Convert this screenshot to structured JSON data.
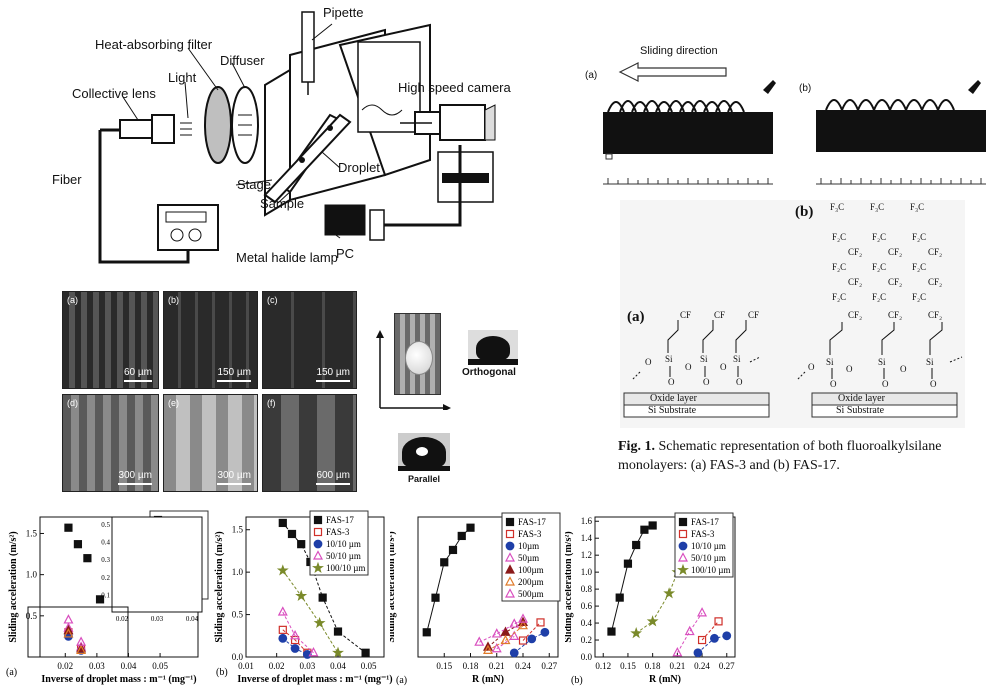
{
  "setup": {
    "labels": {
      "pipette": "Pipette",
      "heat_filter": "Heat-absorbing filter",
      "diffuser": "Diffuser",
      "light": "Light",
      "collective_lens": "Collective lens",
      "high_speed_camera": "High speed camera",
      "fiber": "Fiber",
      "stage": "Stage",
      "droplet": "Droplet",
      "sample": "Sample",
      "metal_halide_lamp": "Metal halide lamp",
      "pc": "PC"
    }
  },
  "sliding": {
    "direction": "Sliding direction",
    "panel_a": "(a)",
    "panel_b": "(b)"
  },
  "micrographs": [
    {
      "tag": "(a)",
      "scale": "60 µm"
    },
    {
      "tag": "(b)",
      "scale": "150 µm"
    },
    {
      "tag": "(c)",
      "scale": "150 µm"
    },
    {
      "tag": "(d)",
      "scale": "300 µm"
    },
    {
      "tag": "(e)",
      "scale": "300 µm"
    },
    {
      "tag": "(f)",
      "scale": "600 µm"
    }
  ],
  "orientation": {
    "orthogonal": "Orthogonal",
    "parallel": "Parallel"
  },
  "molecules": {
    "panel_a": "(a)",
    "panel_b": "(b)",
    "oxide_layer": "Oxide layer",
    "si_substrate": "Si Substrate",
    "caption_bold": "Fig. 1.",
    "caption_text": " Schematic representation of both fluoroalkylsilane monolayers: (a) FAS-3 and (b) FAS-17."
  },
  "chart_data": [
    {
      "type": "scatter",
      "panel": "(a)",
      "xlabel": "Inverse of droplet mass : m⁻¹ (mg⁻¹)",
      "ylabel": "Sliding acceleration (m/s²)",
      "xticks": [
        "0.02",
        "0.03",
        "0.04",
        "0.05"
      ],
      "yticks": [
        "0.5",
        "1.0",
        "1.5"
      ],
      "xlim": [
        0.012,
        0.062
      ],
      "ylim": [
        0,
        1.7
      ],
      "series": [
        {
          "name": "FAS-17",
          "x": [
            0.021,
            0.024,
            0.027,
            0.031
          ],
          "y": [
            1.57,
            1.37,
            1.2,
            0.7
          ]
        },
        {
          "name": "FAS-3",
          "x": [
            0.021,
            0.025
          ],
          "y": [
            0.3,
            0.1
          ]
        },
        {
          "name": "10 µm",
          "x": [
            0.021,
            0.025
          ],
          "y": [
            0.25,
            0.08
          ]
        },
        {
          "name": "50 µm",
          "x": [
            0.021,
            0.025
          ],
          "y": [
            0.35,
            0.12
          ]
        },
        {
          "name": "100 µm",
          "x": [
            0.021,
            0.025
          ],
          "y": [
            0.32,
            0.1
          ]
        },
        {
          "name": "200 µm",
          "x": [
            0.021,
            0.025
          ],
          "y": [
            0.28,
            0.08
          ]
        },
        {
          "name": "500 µm",
          "x": [
            0.021,
            0.025
          ],
          "y": [
            0.45,
            0.18
          ]
        }
      ],
      "inset": {
        "yticks": [
          "0.1",
          "0.2",
          "0.3",
          "0.4",
          "0.5"
        ],
        "xticks": [
          "0.02",
          "0.03",
          "0.04"
        ]
      }
    },
    {
      "type": "scatter",
      "panel": "(b)",
      "xlabel": "Inverse of droplet mass : m⁻¹ (mg⁻¹)",
      "ylabel": "Sliding acceleration (m/s²)",
      "xticks": [
        "0.01",
        "0.02",
        "0.03",
        "0.04",
        "0.05"
      ],
      "yticks": [
        "0.0",
        "0.5",
        "1.0",
        "1.5"
      ],
      "xlim": [
        0.01,
        0.055
      ],
      "ylim": [
        0,
        1.65
      ],
      "series": [
        {
          "name": "FAS-17",
          "x": [
            0.022,
            0.025,
            0.028,
            0.031,
            0.035,
            0.04,
            0.049
          ],
          "y": [
            1.58,
            1.45,
            1.33,
            1.12,
            0.7,
            0.3,
            0.05
          ]
        },
        {
          "name": "FAS-3",
          "x": [
            0.022,
            0.026,
            0.03
          ],
          "y": [
            0.32,
            0.2,
            0.05
          ]
        },
        {
          "name": "10/10 µm",
          "x": [
            0.022,
            0.026,
            0.03
          ],
          "y": [
            0.22,
            0.1,
            0.03
          ]
        },
        {
          "name": "50/10 µm",
          "x": [
            0.022,
            0.026,
            0.032
          ],
          "y": [
            0.53,
            0.25,
            0.05
          ]
        },
        {
          "name": "100/10 µm",
          "x": [
            0.022,
            0.028,
            0.034,
            0.04
          ],
          "y": [
            1.02,
            0.72,
            0.4,
            0.05
          ]
        }
      ]
    },
    {
      "type": "scatter",
      "panel": "(a)",
      "xlabel": "R (mN)",
      "ylabel": "Sliding acceleration (m/s²)",
      "xticks": [
        "0.15",
        "0.18",
        "0.21",
        "0.24",
        "0.27"
      ],
      "xlim": [
        0.12,
        0.28
      ],
      "ylim": [
        0,
        1.7
      ],
      "series": [
        {
          "name": "FAS-17",
          "x": [
            0.13,
            0.14,
            0.15,
            0.16,
            0.17,
            0.18
          ],
          "y": [
            0.3,
            0.72,
            1.15,
            1.3,
            1.47,
            1.57
          ]
        },
        {
          "name": "FAS-3",
          "x": [
            0.24,
            0.26
          ],
          "y": [
            0.2,
            0.42
          ]
        },
        {
          "name": "10µm",
          "x": [
            0.23,
            0.25,
            0.265
          ],
          "y": [
            0.05,
            0.22,
            0.3
          ]
        },
        {
          "name": "50µm",
          "x": [
            0.21,
            0.23
          ],
          "y": [
            0.1,
            0.25
          ]
        },
        {
          "name": "100µm",
          "x": [
            0.2,
            0.22,
            0.24
          ],
          "y": [
            0.12,
            0.3,
            0.42
          ]
        },
        {
          "name": "200µm",
          "x": [
            0.2,
            0.22,
            0.24
          ],
          "y": [
            0.08,
            0.2,
            0.38
          ]
        },
        {
          "name": "500µm",
          "x": [
            0.19,
            0.21,
            0.23,
            0.24
          ],
          "y": [
            0.18,
            0.28,
            0.4,
            0.46
          ]
        }
      ]
    },
    {
      "type": "scatter",
      "panel": "(b)",
      "xlabel": "R (mN)",
      "ylabel": "Sliding acceleration (m/s²)",
      "xticks": [
        "0.12",
        "0.15",
        "0.18",
        "0.21",
        "0.24",
        "0.27"
      ],
      "yticks": [
        "0.0",
        "0.2",
        "0.4",
        "0.6",
        "0.8",
        "1.0",
        "1.2",
        "1.4",
        "1.6"
      ],
      "xlim": [
        0.11,
        0.28
      ],
      "ylim": [
        0,
        1.65
      ],
      "series": [
        {
          "name": "FAS-17",
          "x": [
            0.13,
            0.14,
            0.15,
            0.16,
            0.17,
            0.18
          ],
          "y": [
            0.3,
            0.7,
            1.1,
            1.32,
            1.5,
            1.55
          ]
        },
        {
          "name": "FAS-3",
          "x": [
            0.24,
            0.26
          ],
          "y": [
            0.2,
            0.42
          ]
        },
        {
          "name": "10/10 µm",
          "x": [
            0.235,
            0.255,
            0.27
          ],
          "y": [
            0.05,
            0.22,
            0.25
          ]
        },
        {
          "name": "50/10 µm",
          "x": [
            0.21,
            0.225,
            0.24
          ],
          "y": [
            0.05,
            0.3,
            0.52
          ]
        },
        {
          "name": "100/10 µm",
          "x": [
            0.16,
            0.18,
            0.2,
            0.21
          ],
          "y": [
            0.28,
            0.42,
            0.75,
            1.0
          ]
        }
      ]
    }
  ],
  "colors": {
    "fas17": "#111111",
    "fas3": "#d0302a",
    "s10": "#1f3fa8",
    "s50": "#d94fbf",
    "s100": "#8a1a1a",
    "s200": "#e07a2a",
    "s500": "#7a8a2a"
  }
}
